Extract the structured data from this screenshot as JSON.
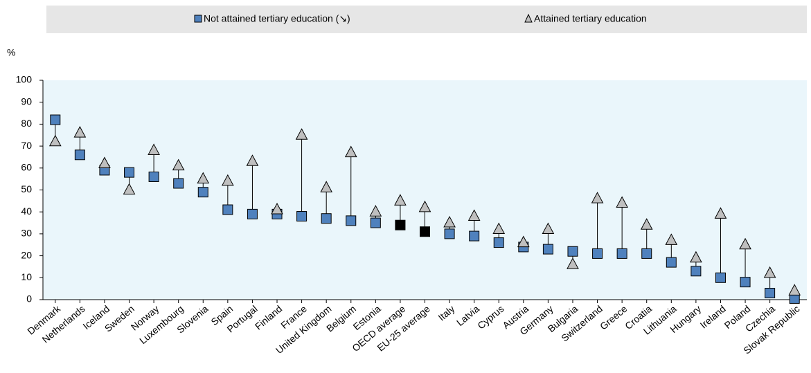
{
  "chart_data": {
    "type": "dot-range",
    "y_label": "%",
    "categories": [
      "Denmark",
      "Netherlands",
      "Iceland",
      "Sweden",
      "Norway",
      "Luxembourg",
      "Slovenia",
      "Spain",
      "Portugal",
      "Finland",
      "France",
      "United Kingdom",
      "Belgium",
      "Estonia",
      "OECD average",
      "EU-25 average",
      "Italy",
      "Latvia",
      "Cyprus",
      "Austria",
      "Germany",
      "Bulgaria",
      "Switzerland",
      "Greece",
      "Croatia",
      "Lithuania",
      "Hungary",
      "Ireland",
      "Poland",
      "Czechia",
      "Slovak Republic"
    ],
    "series": [
      {
        "name": "Not attained tertiary education (↘)",
        "marker": "square",
        "color": "#4f81bd",
        "point_colors": [
          "#4f81bd",
          "#4f81bd",
          "#4f81bd",
          "#4f81bd",
          "#4f81bd",
          "#4f81bd",
          "#4f81bd",
          "#4f81bd",
          "#4f81bd",
          "#4f81bd",
          "#4f81bd",
          "#4f81bd",
          "#4f81bd",
          "#4f81bd",
          "#000000",
          "#000000",
          "#4f81bd",
          "#4f81bd",
          "#4f81bd",
          "#4f81bd",
          "#4f81bd",
          "#4f81bd",
          "#4f81bd",
          "#4f81bd",
          "#4f81bd",
          "#4f81bd",
          "#4f81bd",
          "#4f81bd",
          "#4f81bd",
          "#4f81bd",
          "#4f81bd"
        ],
        "values": [
          82,
          66,
          59,
          58,
          56,
          53,
          49,
          41,
          39,
          39,
          38,
          37,
          36,
          35,
          34,
          31,
          30,
          29,
          26,
          24,
          23,
          22,
          21,
          21,
          21,
          17,
          13,
          10,
          8,
          3,
          0.5
        ]
      },
      {
        "name": "Attained tertiary education",
        "marker": "triangle",
        "color": "#bfbfbf",
        "values": [
          72,
          76,
          62,
          50,
          68,
          61,
          55,
          54,
          63,
          41,
          75,
          51,
          67,
          40,
          45,
          42,
          35,
          38,
          32,
          26,
          32,
          16,
          46,
          44,
          34,
          27,
          19,
          39,
          25,
          12,
          4
        ]
      }
    ],
    "ylim": [
      0,
      100
    ],
    "yticks": [
      0,
      10,
      20,
      30,
      40,
      50,
      60,
      70,
      80,
      90,
      100
    ]
  }
}
